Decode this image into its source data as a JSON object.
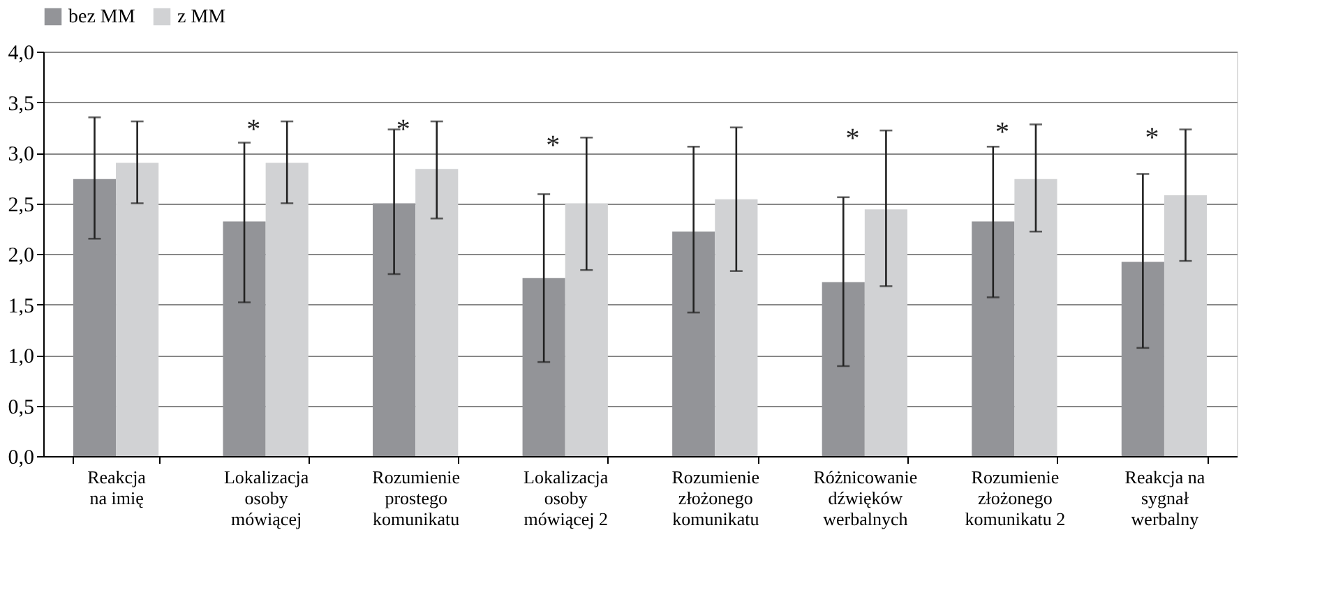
{
  "chart_data": {
    "type": "bar",
    "categories": [
      "Reakcja\nna imię",
      "Lokalizacja\nosoby\nmówiącej",
      "Rozumienie\nprostego\nkomunikatu",
      "Lokalizacja\nosoby\nmówiącej 2",
      "Rozumienie\nzłożonego\nkomunikatu",
      "Różnicowanie\ndźwięków\nwerbalnych",
      "Rozumienie\nzłożonego\nkomunikatu 2",
      "Reakcja na\nsygnał\nwerbalny"
    ],
    "series": [
      {
        "name": "bez MM",
        "color": "#939498",
        "values": [
          2.74,
          2.32,
          2.5,
          1.76,
          2.22,
          1.72,
          2.32,
          1.92
        ],
        "errors": [
          [
            2.15,
            3.35
          ],
          [
            1.52,
            3.1
          ],
          [
            1.8,
            3.23
          ],
          [
            0.93,
            2.59
          ],
          [
            1.42,
            3.06
          ],
          [
            0.89,
            2.56
          ],
          [
            1.57,
            3.06
          ],
          [
            1.07,
            2.79
          ]
        ]
      },
      {
        "name": "z MM",
        "color": "#d1d2d4",
        "value_labels": [
          null,
          "*",
          "*",
          "*",
          null,
          "*",
          "*",
          "*"
        ],
        "values": [
          2.9,
          2.9,
          2.84,
          2.5,
          2.54,
          2.44,
          2.74,
          2.58
        ],
        "errors": [
          [
            2.5,
            3.31
          ],
          [
            2.5,
            3.31
          ],
          [
            2.35,
            3.31
          ],
          [
            1.84,
            3.15
          ],
          [
            1.83,
            3.25
          ],
          [
            1.68,
            3.22
          ],
          [
            2.22,
            3.28
          ],
          [
            1.93,
            3.23
          ]
        ]
      }
    ],
    "ylim": [
      0,
      4
    ],
    "yticks": [
      {
        "value": 0,
        "label": "0,0"
      },
      {
        "value": 0.5,
        "label": "0,5"
      },
      {
        "value": 1,
        "label": "1,0"
      },
      {
        "value": 1.5,
        "label": "1,5"
      },
      {
        "value": 2,
        "label": "2,0"
      },
      {
        "value": 2.5,
        "label": "2,5"
      },
      {
        "value": 3,
        "label": "3,0"
      },
      {
        "value": 3.5,
        "label": "3,5"
      },
      {
        "value": 4,
        "label": "4,0"
      }
    ],
    "grid": "y",
    "legend": "top"
  }
}
